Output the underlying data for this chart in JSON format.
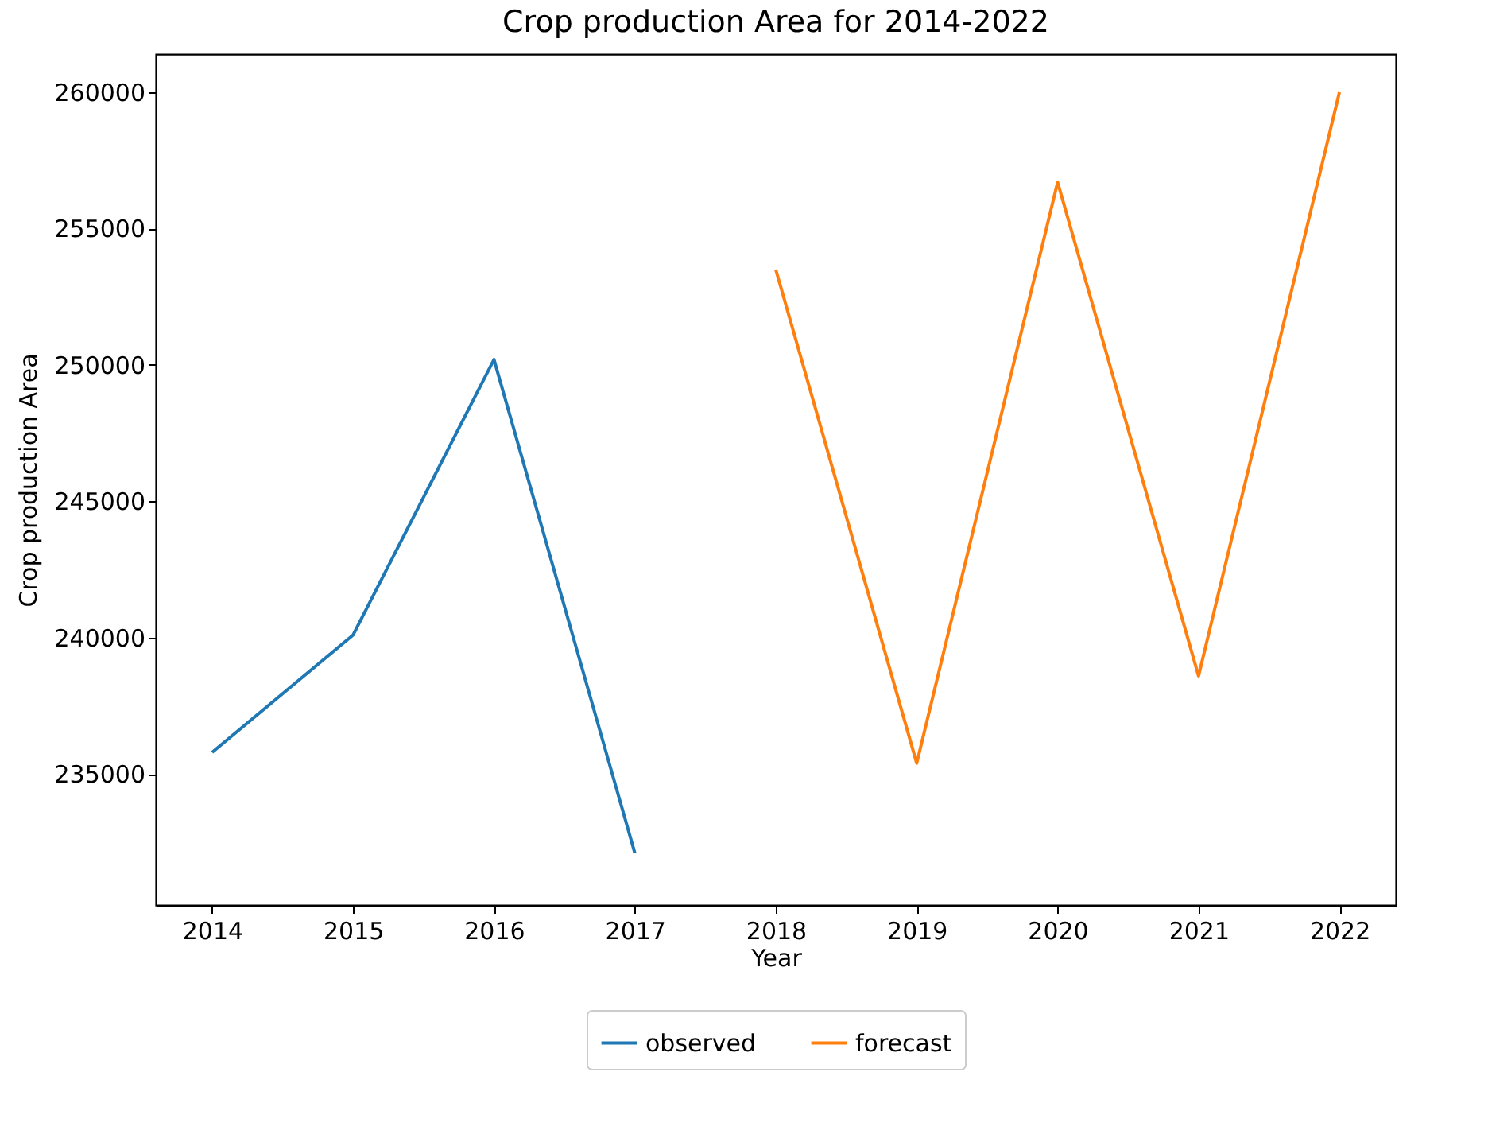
{
  "chart_data": {
    "type": "line",
    "title": "Crop production Area for 2014-2022",
    "xlabel": "Year",
    "ylabel": "Crop production Area",
    "xlim": [
      2013.6,
      2022.4
    ],
    "xticks": [
      2014,
      2015,
      2016,
      2017,
      2018,
      2019,
      2020,
      2021,
      2022
    ],
    "ylim": [
      230200,
      261400
    ],
    "yticks": [
      235000,
      240000,
      245000,
      250000,
      255000,
      260000
    ],
    "series": [
      {
        "name": "observed",
        "color": "#1f77b4",
        "x": [
          2014,
          2015,
          2016,
          2017
        ],
        "values": [
          235800,
          240100,
          250200,
          232100
        ]
      },
      {
        "name": "forecast",
        "color": "#ff7f0e",
        "x": [
          2018,
          2019,
          2020,
          2021,
          2022
        ],
        "values": [
          253500,
          235400,
          256700,
          238600,
          260000
        ]
      }
    ],
    "grid": false,
    "legend": "bottom",
    "marker": "none",
    "line_style": "solid"
  }
}
